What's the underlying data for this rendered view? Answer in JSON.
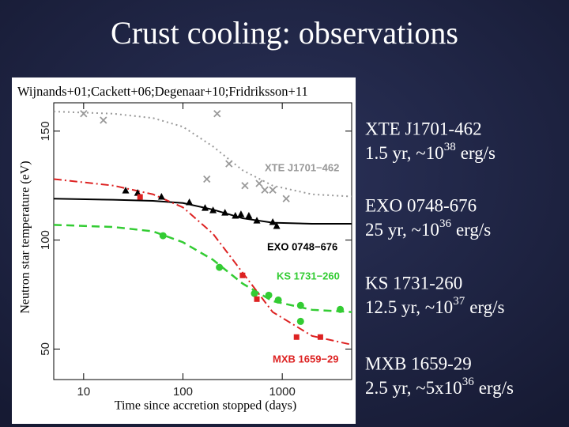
{
  "slide": {
    "title": "Crust cooling: observations",
    "sources": [
      {
        "name": "XTE J1701-462",
        "text": "1.5 yr, ~10",
        "exponent": "38",
        "unit": "erg/s"
      },
      {
        "name": "EXO 0748-676",
        "text": "25 yr, ~10",
        "exponent": "36",
        "unit": "erg/s"
      },
      {
        "name": "KS 1731-260",
        "text": "12.5 yr, ~10",
        "exponent": "37",
        "unit": "erg/s"
      },
      {
        "name": "MXB 1659-29",
        "text": "2.5 yr, ~5x10",
        "exponent": "36",
        "unit": "erg/s"
      }
    ]
  },
  "chart_data": {
    "type": "scatter",
    "title": "Wijnands+01;Cackett+06;Degenaar+10;Fridriksson+11",
    "x_label": "Time since accretion stopped (days)",
    "y_label": "Neutron star temperature (eV)",
    "xscale": "log",
    "xlim": [
      5,
      5000
    ],
    "xticks": [
      10,
      100,
      1000
    ],
    "ylim": [
      36,
      163
    ],
    "yticks": [
      50,
      100,
      150
    ],
    "series": [
      {
        "name": "XTE J1701−462",
        "color": "#999999",
        "marker": "x",
        "x": [
          10,
          15.8,
          221,
          291,
          174,
          421,
          586,
          667,
          802,
          1096
        ],
        "values": [
          158,
          155,
          158,
          135,
          128,
          125,
          126,
          123,
          123,
          119
        ],
        "fit": {
          "line_style": "dotted",
          "x": [
            5,
            20,
            50,
            100,
            200,
            400,
            800,
            2000,
            5000
          ],
          "values": [
            159,
            158,
            156,
            152,
            143,
            132,
            125,
            121,
            120
          ]
        }
      },
      {
        "name": "EXO 0748−676",
        "color": "#000000",
        "marker": "triangle",
        "x": [
          26.5,
          35,
          60.8,
          116,
          167,
          201,
          265,
          337,
          384,
          461,
          555,
          802,
          879
        ],
        "values": [
          122.7,
          121.6,
          119.8,
          117.3,
          114.7,
          113.6,
          112.5,
          111.1,
          111.8,
          111.1,
          108.9,
          108.2,
          106.4
        ],
        "fit": {
          "line_style": "solid",
          "x": [
            5,
            20,
            50,
            100,
            200,
            400,
            800,
            2000,
            5000
          ],
          "values": [
            119,
            118.5,
            118,
            117,
            114,
            110,
            108,
            107.5,
            107.5
          ]
        }
      },
      {
        "name": "KS 1731−260",
        "color": "#33cc33",
        "marker": "circle",
        "x": [
          63,
          233,
          525,
          731,
          912,
          1528,
          1528,
          3837
        ],
        "values": [
          102,
          87.5,
          75.5,
          74.7,
          72.5,
          70,
          62.7,
          68.2
        ],
        "fit": {
          "line_style": "dashed",
          "x": [
            5,
            20,
            50,
            100,
            200,
            400,
            800,
            2000,
            5000
          ],
          "values": [
            107,
            106,
            104,
            99,
            91,
            80,
            72,
            68,
            67
          ]
        }
      },
      {
        "name": "MXB 1659−29",
        "color": "#dd2222",
        "marker": "square",
        "x": [
          37,
          398,
          555,
          1393,
          2421
        ],
        "values": [
          119.8,
          83.8,
          72.9,
          55.5,
          55.5
        ],
        "fit": {
          "line_style": "dashdot",
          "x": [
            5,
            20,
            50,
            100,
            200,
            400,
            800,
            2000,
            5000
          ],
          "values": [
            128,
            125,
            121,
            115,
            103,
            85,
            67,
            56,
            52
          ]
        }
      }
    ]
  }
}
